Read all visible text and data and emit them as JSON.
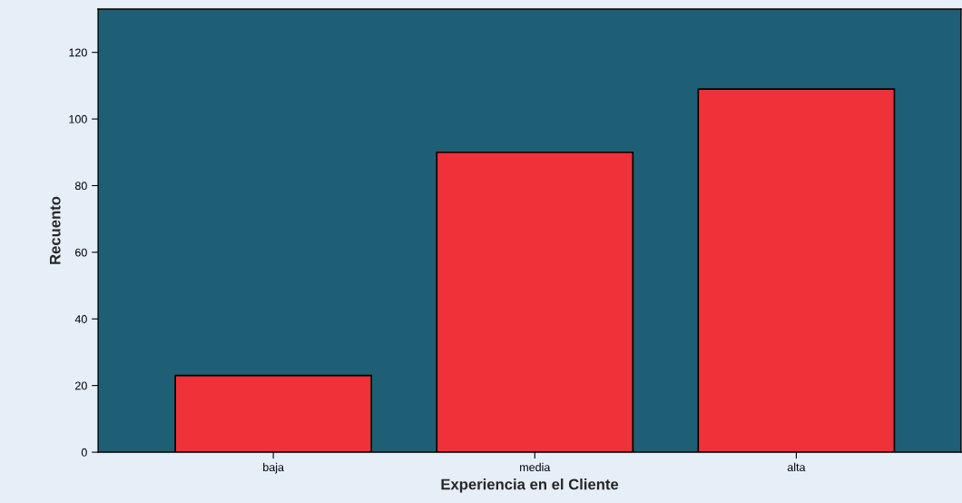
{
  "chart_data": {
    "type": "bar",
    "xlabel": "Experiencia en el Cliente",
    "ylabel": "Recuento",
    "categories": [
      "baja",
      "media",
      "alta"
    ],
    "values": [
      23,
      90,
      109
    ],
    "color": "#ef3239",
    "ylim": [
      0,
      133
    ],
    "yticks": [
      0,
      20,
      40,
      60,
      80,
      100,
      120
    ],
    "grid": false,
    "legend": false
  }
}
